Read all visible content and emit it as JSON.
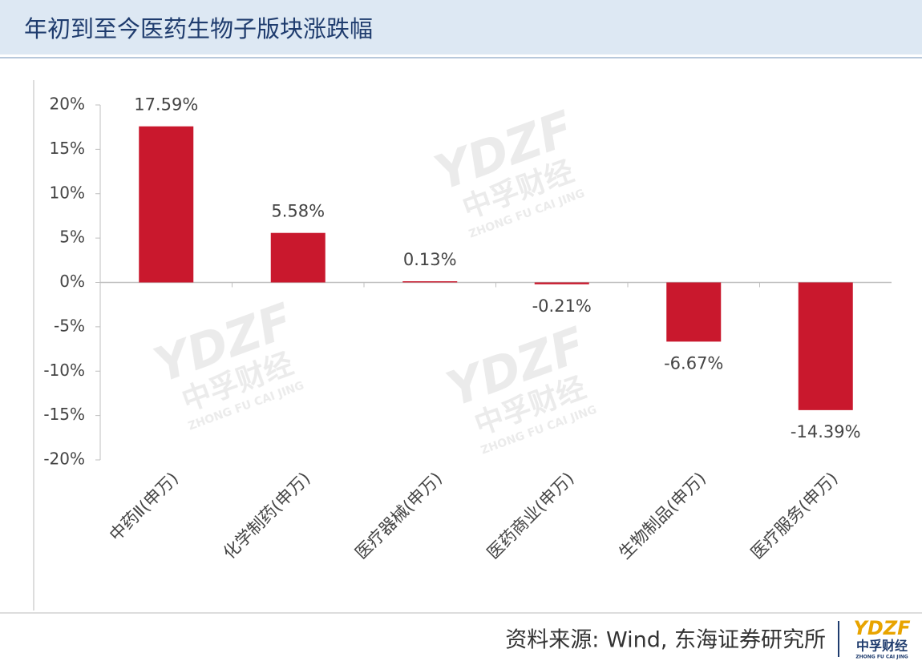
{
  "title": "年初到至今医药生物子版块涨跌幅",
  "chart_data": {
    "type": "bar",
    "categories": [
      "中药Ⅱ(申万)",
      "化学制药(申万)",
      "医疗器械(申万)",
      "医药商业(申万)",
      "生物制品(申万)",
      "医疗服务(申万)"
    ],
    "values": [
      17.59,
      5.58,
      0.13,
      -0.21,
      -6.67,
      -14.39
    ],
    "value_labels": [
      "17.59%",
      "5.58%",
      "0.13%",
      "-0.21%",
      "-6.67%",
      "-14.39%"
    ],
    "color": "#c9182d",
    "ylim": [
      -20,
      20
    ],
    "yticks": [
      {
        "value": 20,
        "label": "20%"
      },
      {
        "value": 15,
        "label": "15%"
      },
      {
        "value": 10,
        "label": "10%"
      },
      {
        "value": 5,
        "label": "5%"
      },
      {
        "value": 0,
        "label": "0%"
      },
      {
        "value": -5,
        "label": "-5%"
      },
      {
        "value": -10,
        "label": "-10%"
      },
      {
        "value": -15,
        "label": "-15%"
      },
      {
        "value": -20,
        "label": "-20%"
      }
    ]
  },
  "source": "资料来源: Wind, 东海证券研究所",
  "logo": {
    "mark": "YDZF",
    "name": "中孚财经",
    "pinyin": "ZHONG FU CAI JING"
  }
}
